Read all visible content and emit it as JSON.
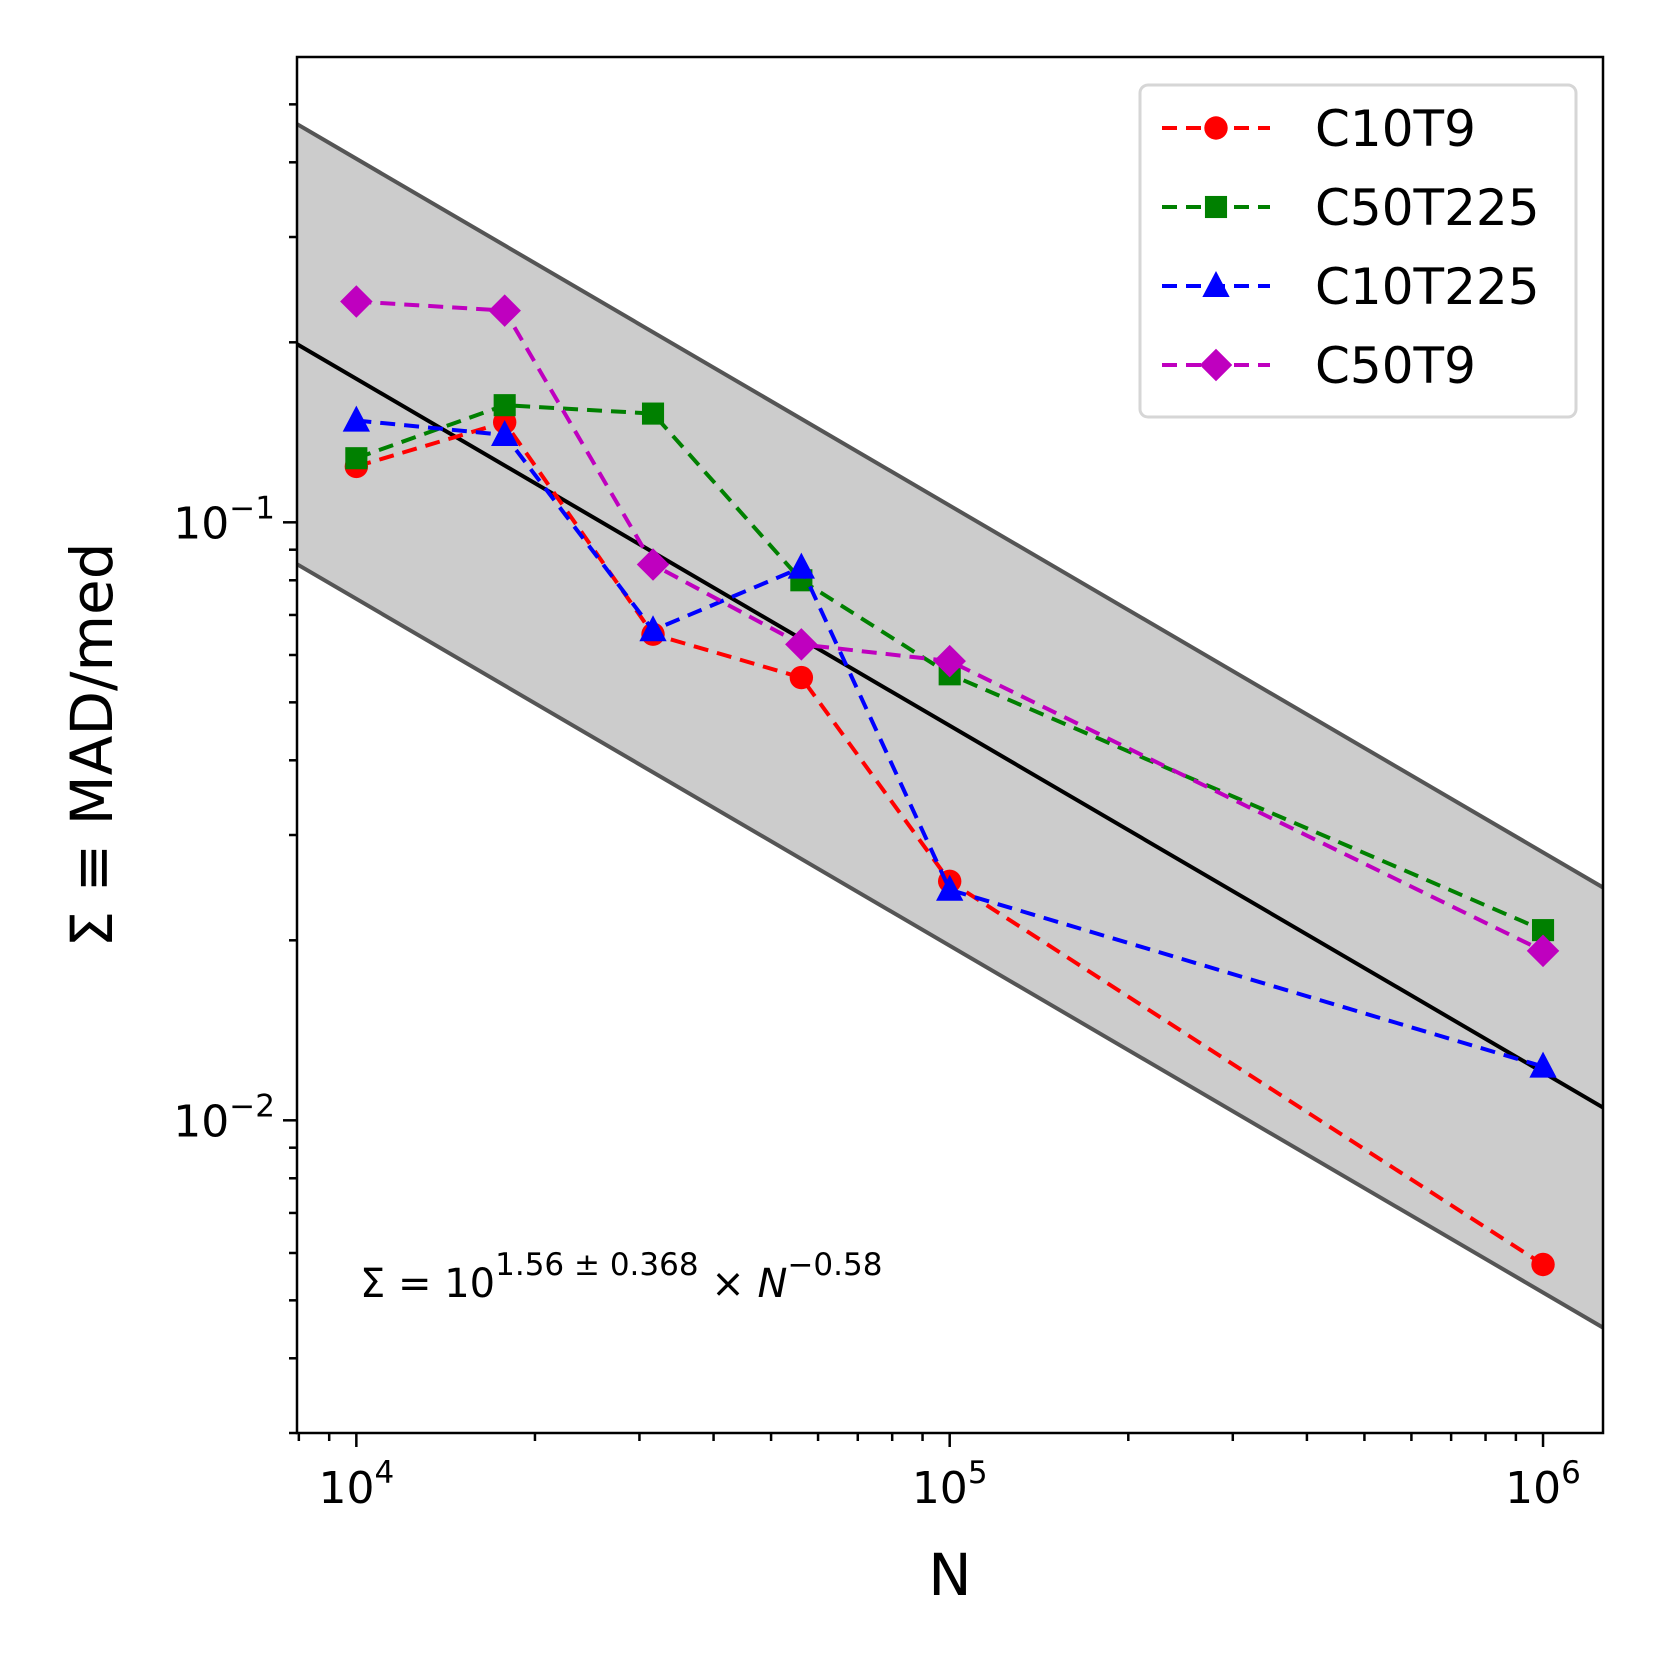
{
  "chart_data": {
    "type": "line",
    "title": "",
    "xlabel": "N",
    "ylabel": "Σ ≡ MAD/med",
    "xscale": "log",
    "yscale": "log",
    "xlim": [
      7943,
      1262000
    ],
    "ylim": [
      0.003,
      0.6
    ],
    "grid": false,
    "legend_position": "top-right",
    "x_ticks": [
      {
        "value": 10000,
        "base": "10",
        "exp": "4"
      },
      {
        "value": 100000,
        "base": "10",
        "exp": "5"
      },
      {
        "value": 1000000,
        "base": "10",
        "exp": "6"
      }
    ],
    "y_ticks": [
      {
        "value": 0.1,
        "base": "10",
        "exp": "−1"
      },
      {
        "value": 0.01,
        "base": "10",
        "exp": "−2"
      }
    ],
    "x": [
      10000,
      17783,
      31623,
      56234,
      100000,
      1000000
    ],
    "series": [
      {
        "name": "C10T9",
        "color": "#ff0000",
        "marker": "circle",
        "values": [
          0.124,
          0.147,
          0.065,
          0.055,
          0.0251,
          0.00574
        ]
      },
      {
        "name": "C50T225",
        "color": "#008000",
        "marker": "square",
        "values": [
          0.128,
          0.157,
          0.152,
          0.08,
          0.0557,
          0.0208
        ]
      },
      {
        "name": "C10T225",
        "color": "#0000ff",
        "marker": "triangle",
        "values": [
          0.148,
          0.14,
          0.066,
          0.084,
          0.0243,
          0.0123
        ]
      },
      {
        "name": "C50T9",
        "color": "#bf00bf",
        "marker": "diamond",
        "values": [
          0.234,
          0.226,
          0.085,
          0.0625,
          0.0586,
          0.0192
        ]
      }
    ],
    "fit": {
      "log10_intercept": 1.56,
      "log10_intercept_spread": 0.368,
      "slope": -0.58,
      "line_color": "#000000",
      "band_color": "#cccccc",
      "band_edge_color": "#555555"
    },
    "annotation": {
      "prefix": "Σ = 10",
      "superscript": "1.56 ± 0.368",
      "times": " × ",
      "variable": "N",
      "exponent": "−0.58"
    }
  }
}
